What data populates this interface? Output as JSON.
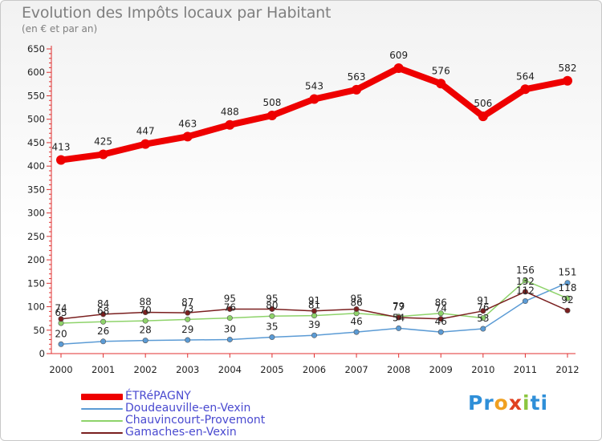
{
  "header": {
    "title": "Evolution des Impôts locaux par Habitant",
    "subtitle": "(en € et par an)"
  },
  "logo": {
    "text": "Proxiti",
    "parts": [
      "Pr",
      "o",
      "x",
      "i",
      "ti"
    ]
  },
  "chart_data": {
    "type": "line",
    "title": "Evolution des Impôts locaux par Habitant",
    "subtitle": "(en € et par an)",
    "xlabel": "",
    "ylabel": "",
    "ylim": [
      0,
      650
    ],
    "yticks": [
      0,
      50,
      100,
      150,
      200,
      250,
      300,
      350,
      400,
      450,
      500,
      550,
      600,
      650
    ],
    "grid": false,
    "legend_position": "bottom-left",
    "x": [
      "2000",
      "2001",
      "2002",
      "2003",
      "2004",
      "2005",
      "2006",
      "2007",
      "2008",
      "2009",
      "2010",
      "2011",
      "2012"
    ],
    "series": [
      {
        "name": "ÉTRéPAGNY",
        "color": "#ee0000",
        "values": [
          413,
          425,
          447,
          463,
          488,
          508,
          543,
          563,
          609,
          576,
          506,
          564,
          582
        ]
      },
      {
        "name": "Doudeauville-en-Vexin",
        "color": "#5b9bd5",
        "values": [
          20,
          26,
          28,
          29,
          30,
          35,
          39,
          46,
          54,
          46,
          53,
          112,
          151
        ]
      },
      {
        "name": "Chauvincourt-Provemont",
        "color": "#8ed36a",
        "values": [
          65,
          68,
          70,
          73,
          76,
          80,
          81,
          86,
          79,
          86,
          76,
          156,
          118
        ]
      },
      {
        "name": "Gamaches-en-Vexin",
        "color": "#7a1f1f",
        "values": [
          74,
          84,
          88,
          87,
          95,
          95,
          91,
          95,
          77,
          74,
          91,
          132,
          92
        ]
      }
    ]
  }
}
